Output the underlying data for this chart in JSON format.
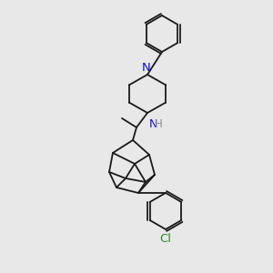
{
  "bg": "#e8e8e8",
  "bc": "#1a1a1a",
  "Nc": "#1010cc",
  "Clc": "#2e8b2e",
  "lw": 1.3,
  "fs": 8.5,
  "xlim": [
    0,
    300
  ],
  "ylim": [
    0,
    300
  ]
}
